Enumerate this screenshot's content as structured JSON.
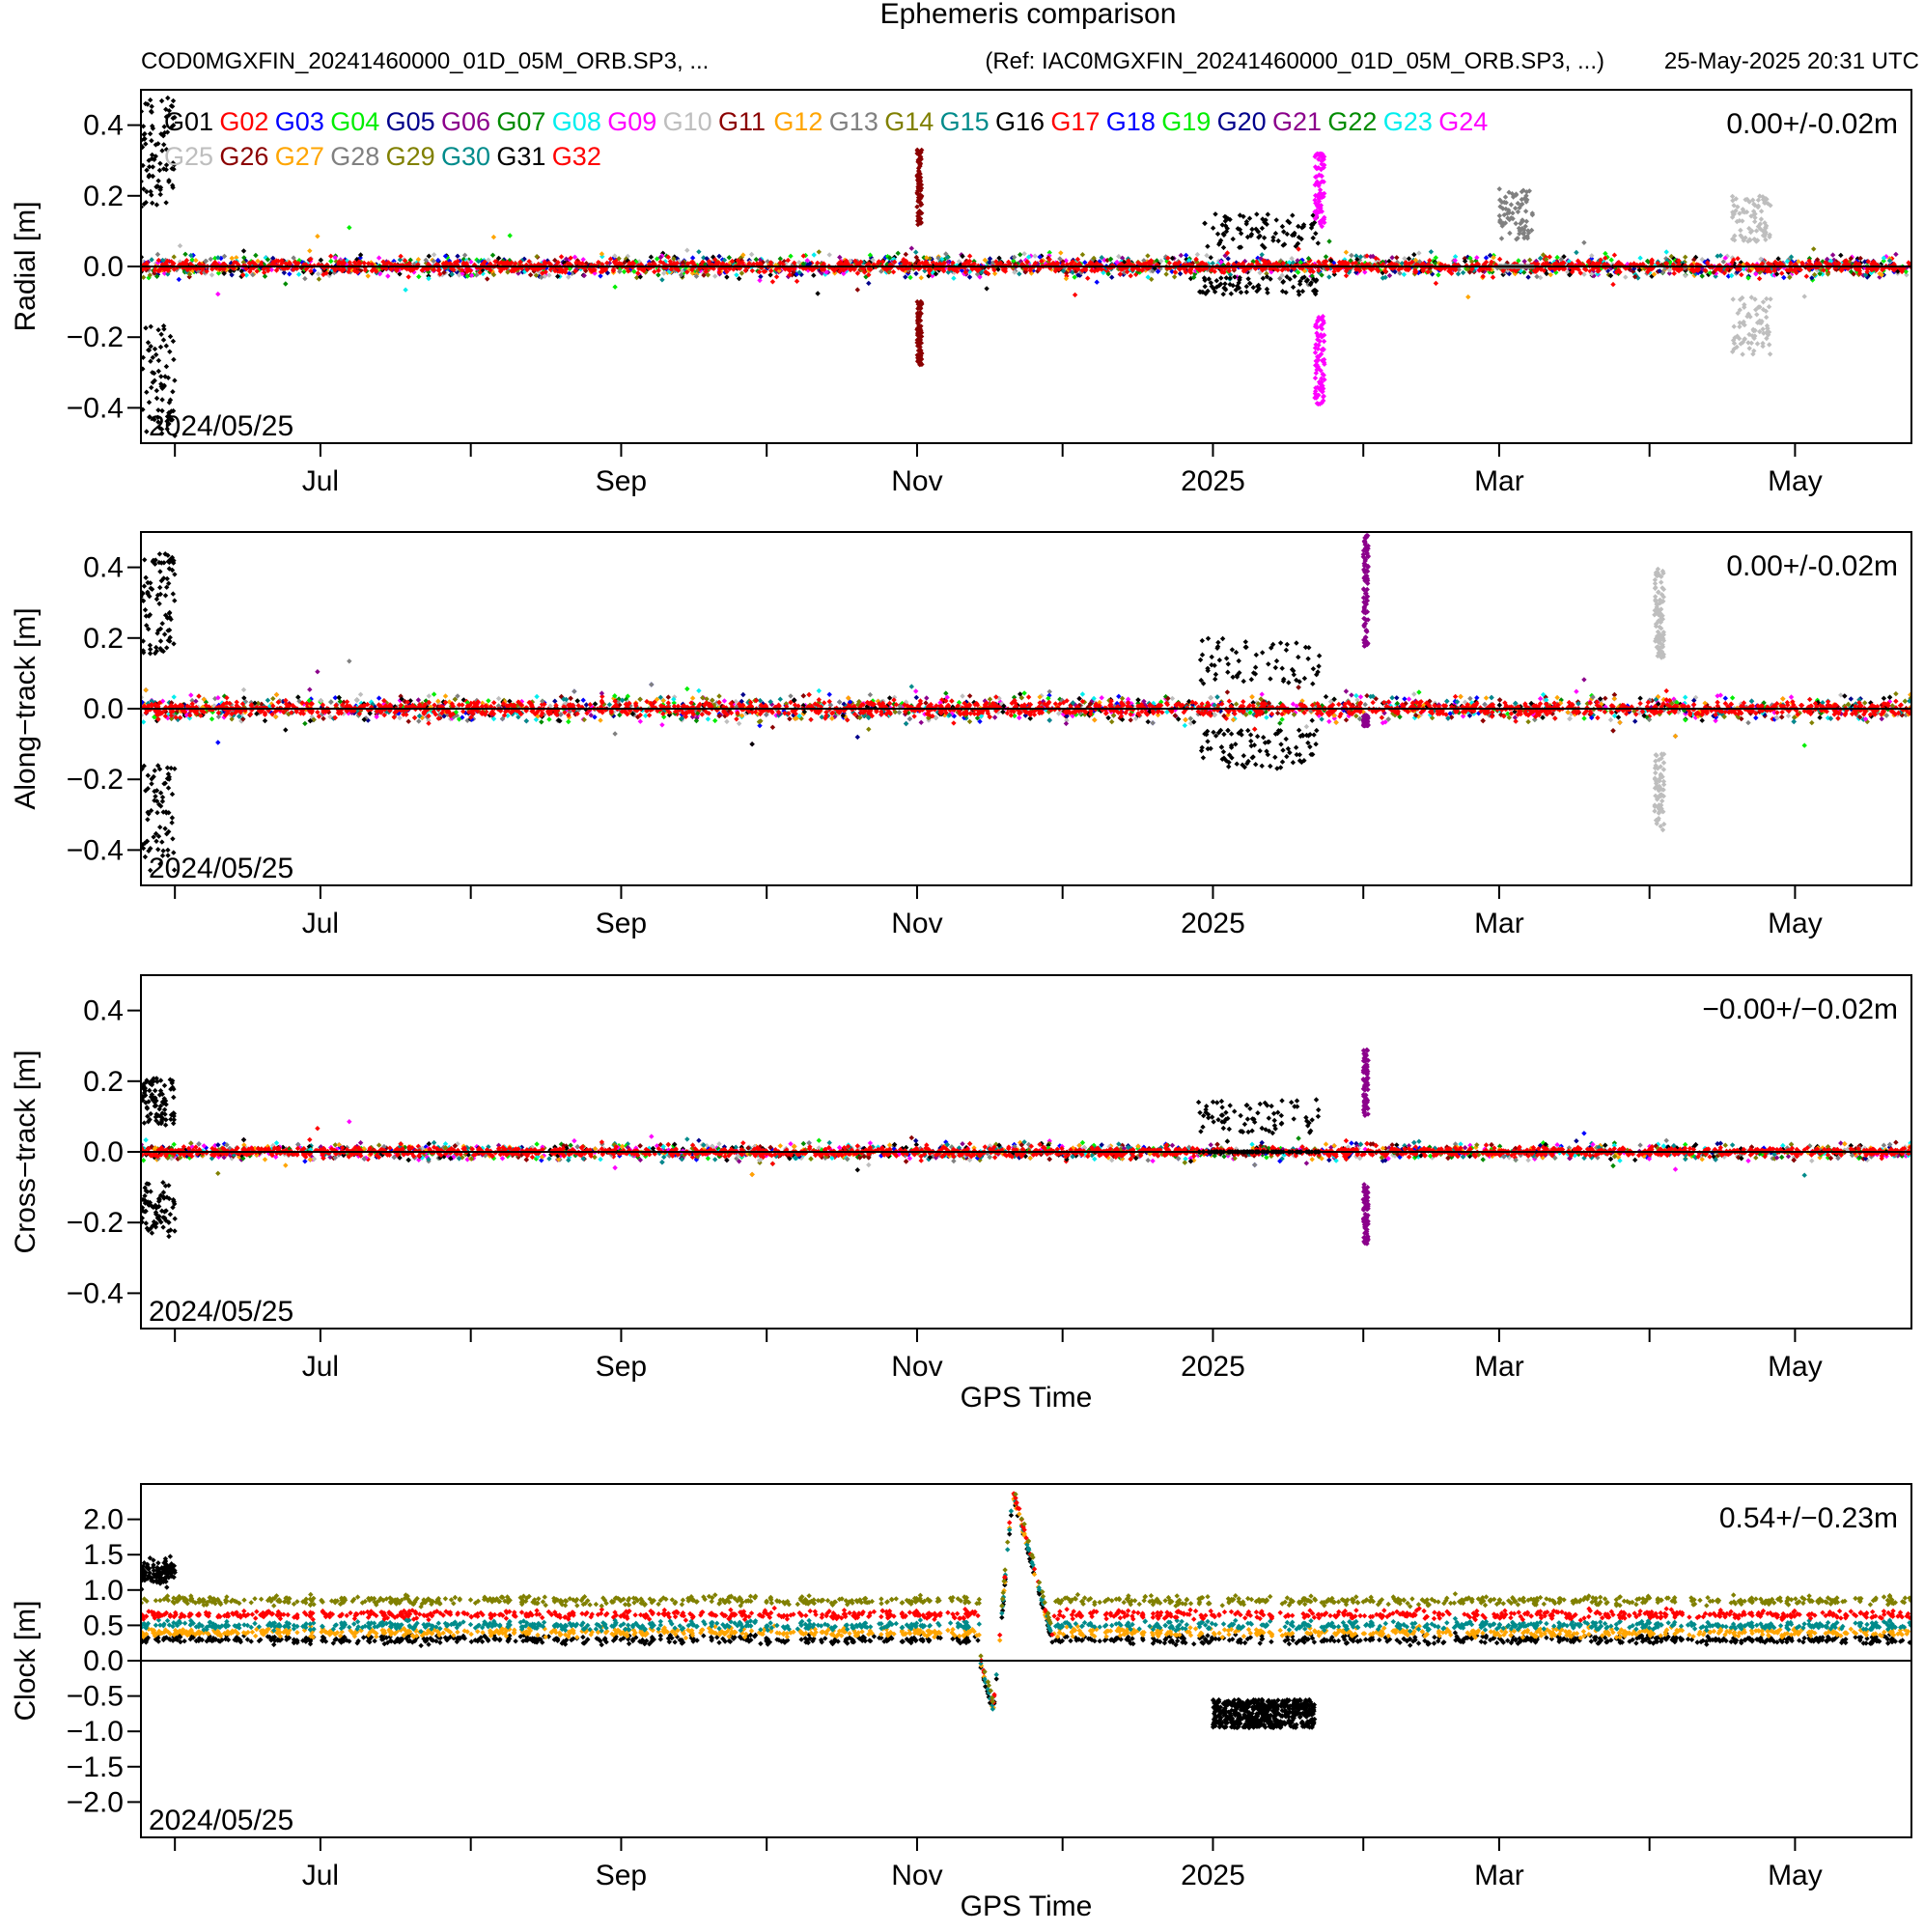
{
  "header": {
    "title": "Ephemeris comparison",
    "file_label": "COD0MGXFIN_20241460000_01D_05M_ORB.SP3, ...",
    "ref_label": "(Ref: IAC0MGXFIN_20241460000_01D_05M_ORB.SP3, ...)",
    "timestamp": "25-May-2025 20:31 UTC"
  },
  "colors": {
    "G01": "#000000",
    "G02": "#ff0000",
    "G03": "#0000ff",
    "G04": "#00ee00",
    "G05": "#00008b",
    "G06": "#8b008b",
    "G07": "#008b00",
    "G08": "#00eeee",
    "G09": "#ff00ff",
    "G10": "#bebebe",
    "G11": "#8b0000",
    "G12": "#ffa500",
    "G13": "#808080",
    "G14": "#808000",
    "G15": "#008b8b",
    "G16": "#000000",
    "G17": "#ff0000",
    "G18": "#0000ff",
    "G19": "#00ee00",
    "G20": "#00008b",
    "G21": "#8b008b",
    "G22": "#008b00",
    "G23": "#00eeee",
    "G24": "#ff00ff",
    "G25": "#bebebe",
    "G26": "#8b0000",
    "G27": "#ffa500",
    "G28": "#808080",
    "G29": "#808000",
    "G30": "#008b8b",
    "G31": "#000000",
    "G32": "#ff0000"
  },
  "chart_data": [
    {
      "type": "scatter",
      "ylabel": "Radial [m]",
      "xlabel": "",
      "stat": "0.00+/-0.02m",
      "start_label": "2024/05/25",
      "x_range": [
        "2024-05-25",
        "2025-05-25"
      ],
      "ylim": [
        -0.5,
        0.5
      ],
      "yticks": [
        -0.4,
        -0.2,
        0.0,
        0.2,
        0.4
      ],
      "ytick_labels": [
        "−0.4",
        "−0.2",
        "0.0",
        "0.2",
        "0.4"
      ],
      "legend": {
        "placement": "top-left",
        "entries": [
          "G01",
          "G02",
          "G03",
          "G04",
          "G05",
          "G06",
          "G07",
          "G08",
          "G09",
          "G10",
          "G11",
          "G12",
          "G13",
          "G14",
          "G15",
          "G16",
          "G17",
          "G18",
          "G19",
          "G20",
          "G21",
          "G22",
          "G23",
          "G24",
          "G25",
          "G26",
          "G27",
          "G28",
          "G29",
          "G30",
          "G31",
          "G32"
        ]
      },
      "series_summary": [
        {
          "sat": "G01",
          "x": [
            "2024-05-25",
            "2024-06-01"
          ],
          "spread": 0.48,
          "note_sat": "G01"
        },
        {
          "sat": "G16",
          "x": [
            "2024-12-29",
            "2025-01-23"
          ],
          "values": [
            -0.08,
            0.15
          ]
        },
        {
          "sat": "G13",
          "x": [
            "2025-03-01",
            "2025-03-08"
          ],
          "values": [
            0.0,
            0.22
          ]
        },
        {
          "sat": "G11",
          "x": [
            "2024-11-01",
            "2024-11-02"
          ],
          "values": [
            -0.28,
            0.33
          ]
        },
        {
          "sat": "G09",
          "x": [
            "2025-01-22",
            "2025-01-24"
          ],
          "values": [
            -0.39,
            0.32
          ]
        },
        {
          "sat": "G10",
          "x": [
            "2025-04-18",
            "2025-04-26"
          ],
          "values": [
            -0.25,
            0.2
          ]
        }
      ]
    },
    {
      "type": "scatter",
      "ylabel": "Along−track [m]",
      "xlabel": "",
      "stat": "0.00+/-0.02m",
      "start_label": "2024/05/25",
      "x_range": [
        "2024-05-25",
        "2025-05-25"
      ],
      "ylim": [
        -0.5,
        0.5
      ],
      "yticks": [
        -0.4,
        -0.2,
        0.0,
        0.2,
        0.4
      ],
      "ytick_labels": [
        "−0.4",
        "−0.2",
        "0.0",
        "0.2",
        "0.4"
      ],
      "series_summary": [
        {
          "sat": "G01",
          "x": [
            "2024-05-25",
            "2024-06-01"
          ],
          "values": [
            -0.46,
            0.44
          ]
        },
        {
          "sat": "G16",
          "x": [
            "2024-12-29",
            "2025-01-23"
          ],
          "values": [
            -0.17,
            0.2
          ]
        },
        {
          "sat": "G21",
          "x": [
            "2025-02-01",
            "2025-02-02"
          ],
          "values": [
            -0.05,
            0.49
          ]
        },
        {
          "sat": "G10",
          "x": [
            "2025-04-02",
            "2025-04-04"
          ],
          "values": [
            -0.35,
            0.4
          ]
        }
      ]
    },
    {
      "type": "scatter",
      "ylabel": "Cross−track [m]",
      "xlabel": "GPS Time",
      "stat": "−0.00+/−0.02m",
      "start_label": "2024/05/25",
      "x_range": [
        "2024-05-25",
        "2025-05-25"
      ],
      "ylim": [
        -0.5,
        0.5
      ],
      "yticks": [
        -0.4,
        -0.2,
        0.0,
        0.2,
        0.4
      ],
      "ytick_labels": [
        "−0.4",
        "−0.2",
        "0.0",
        "0.2",
        "0.4"
      ],
      "series_summary": [
        {
          "sat": "G01",
          "x": [
            "2024-05-25",
            "2024-06-01"
          ],
          "values": [
            -0.24,
            0.21
          ]
        },
        {
          "sat": "G16",
          "x": [
            "2024-12-29",
            "2025-01-23"
          ],
          "values": [
            0.0,
            0.15
          ]
        },
        {
          "sat": "G21",
          "x": [
            "2025-02-01",
            "2025-02-02"
          ],
          "values": [
            -0.26,
            0.29
          ]
        }
      ]
    },
    {
      "type": "scatter",
      "ylabel": "Clock [m]",
      "xlabel": "GPS Time",
      "stat": "0.54+/−0.23m",
      "start_label": "2024/05/25",
      "x_range": [
        "2024-05-25",
        "2025-05-25"
      ],
      "ylim": [
        -2.5,
        2.5
      ],
      "yticks": [
        -2.0,
        -1.5,
        -1.0,
        -0.5,
        0.0,
        0.5,
        1.0,
        1.5,
        2.0
      ],
      "ytick_labels": [
        "−2.0",
        "−1.5",
        "−1.0",
        "−0.5",
        "0.0",
        "0.5",
        "1.0",
        "1.5",
        "2.0"
      ],
      "series_levels": [
        {
          "sat": "G14",
          "value": 0.85
        },
        {
          "sat": "G02",
          "value": 0.65
        },
        {
          "sat": "G15",
          "value": 0.5
        },
        {
          "sat": "G12",
          "value": 0.4
        },
        {
          "sat": "G01",
          "value": 0.3
        }
      ],
      "events": [
        {
          "desc": "spike",
          "x": [
            "2024-11-14",
            "2024-11-29"
          ],
          "min": -0.7,
          "max": 2.4
        },
        {
          "desc": "G16 offset",
          "x": [
            "2025-01-01",
            "2025-01-22"
          ],
          "values": [
            -0.95,
            -0.55
          ]
        }
      ]
    }
  ],
  "xaxis": {
    "start": "2024-05-25",
    "end": "2025-05-25",
    "month_ticks": [
      "2024-06-01",
      "2024-07-01",
      "2024-08-01",
      "2024-09-01",
      "2024-10-01",
      "2024-11-01",
      "2024-12-01",
      "2025-01-01",
      "2025-02-01",
      "2025-03-01",
      "2025-04-01",
      "2025-05-01"
    ],
    "labels": [
      {
        "date": "2024-07-01",
        "text": "Jul"
      },
      {
        "date": "2024-09-01",
        "text": "Sep"
      },
      {
        "date": "2024-11-01",
        "text": "Nov"
      },
      {
        "date": "2025-01-01",
        "text": "2025"
      },
      {
        "date": "2025-03-01",
        "text": "Mar"
      },
      {
        "date": "2025-05-01",
        "text": "May"
      }
    ]
  }
}
